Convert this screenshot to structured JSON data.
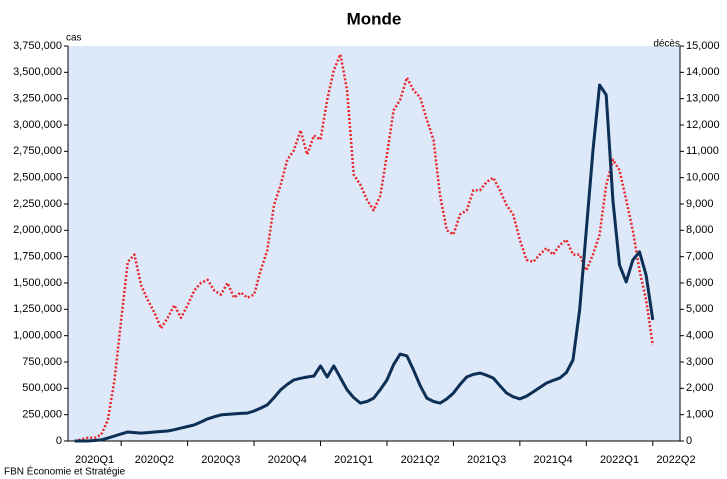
{
  "chart_data": {
    "type": "line",
    "title": "Monde",
    "ylabel": "cas",
    "y2label": "décès",
    "source": "FBN Économie et Stratégie",
    "x": [
      0.3,
      0.4,
      0.5,
      0.6,
      0.7,
      0.8,
      0.9,
      1.0,
      1.1,
      1.2,
      1.3,
      1.4,
      1.5,
      1.6,
      1.7,
      1.8,
      1.9,
      2.0,
      2.1,
      2.2,
      2.3,
      2.4,
      2.5,
      2.6,
      2.7,
      2.8,
      2.9,
      3.0,
      3.1,
      3.2,
      3.3,
      3.4,
      3.5,
      3.6,
      3.7,
      3.8,
      3.9,
      4.0,
      4.1,
      4.2,
      4.3,
      4.4,
      4.5,
      4.6,
      4.7,
      4.8,
      4.9,
      5.0,
      5.1,
      5.2,
      5.3,
      5.4,
      5.5,
      5.6,
      5.7,
      5.8,
      5.9,
      6.0,
      6.1,
      6.2,
      6.3,
      6.4,
      6.5,
      6.6,
      6.7,
      6.8,
      6.9,
      7.0,
      7.1,
      7.2,
      7.3,
      7.4,
      7.5,
      7.6,
      7.7,
      7.8,
      7.9,
      8.0,
      8.1,
      8.2,
      8.3,
      8.4,
      8.5,
      8.6,
      8.7,
      8.8,
      8.9,
      9.0
    ],
    "xlim": [
      0.2,
      9.41
    ],
    "xticks": [
      {
        "value": 0.6,
        "label": "2020Q1"
      },
      {
        "value": 1.5,
        "label": "2020Q2"
      },
      {
        "value": 2.5,
        "label": "2020Q3"
      },
      {
        "value": 3.5,
        "label": "2020Q4"
      },
      {
        "value": 4.5,
        "label": "2021Q1"
      },
      {
        "value": 5.5,
        "label": "2021Q2"
      },
      {
        "value": 6.5,
        "label": "2021Q3"
      },
      {
        "value": 7.5,
        "label": "2021Q4"
      },
      {
        "value": 8.5,
        "label": "2022Q1"
      },
      {
        "value": 9.35,
        "label": "2022Q2"
      }
    ],
    "ylim": [
      0,
      3750000
    ],
    "yticks": [
      0,
      {
        "value": 250000,
        "label": "250,000"
      },
      {
        "value": 500000,
        "label": "500,000"
      },
      {
        "value": 750000,
        "label": "750,000"
      },
      {
        "value": 1000000,
        "label": "1,000,000"
      },
      {
        "value": 1250000,
        "label": "1,250,000"
      },
      {
        "value": 1500000,
        "label": "1,500,000"
      },
      {
        "value": 1750000,
        "label": "1,750,000"
      },
      {
        "value": 2000000,
        "label": "2,000,000"
      },
      {
        "value": 2250000,
        "label": "2,250,000"
      },
      {
        "value": 2500000,
        "label": "2,500,000"
      },
      {
        "value": 2750000,
        "label": "2,750,000"
      },
      {
        "value": 3000000,
        "label": "3,000,000"
      },
      {
        "value": 3250000,
        "label": "3,250,000"
      },
      {
        "value": 3500000,
        "label": "3,500,000"
      },
      {
        "value": 3750000,
        "label": "3,750,000"
      }
    ],
    "y2lim": [
      0,
      15000
    ],
    "y2ticks": [
      0,
      {
        "value": 1000,
        "label": "1,000"
      },
      {
        "value": 2000,
        "label": "2,000"
      },
      {
        "value": 3000,
        "label": "3,000"
      },
      {
        "value": 4000,
        "label": "4,000"
      },
      {
        "value": 5000,
        "label": "5,000"
      },
      {
        "value": 6000,
        "label": "6,000"
      },
      {
        "value": 7000,
        "label": "7,000"
      },
      {
        "value": 8000,
        "label": "8,000"
      },
      {
        "value": 9000,
        "label": "9,000"
      },
      {
        "value": 10000,
        "label": "10,000"
      },
      {
        "value": 11000,
        "label": "11,000"
      },
      {
        "value": 12000,
        "label": "12,000"
      },
      {
        "value": 13000,
        "label": "13,000"
      },
      {
        "value": 14000,
        "label": "14,000"
      },
      {
        "value": 15000,
        "label": "15,000"
      }
    ],
    "series": [
      {
        "name": "cas",
        "color": "#e8262a",
        "dash": true,
        "values": [
          0,
          15000,
          30000,
          30000,
          60000,
          200000,
          580000,
          1150000,
          1700000,
          1770000,
          1480000,
          1340000,
          1220000,
          1070000,
          1170000,
          1290000,
          1170000,
          1290000,
          1430000,
          1500000,
          1530000,
          1430000,
          1390000,
          1500000,
          1360000,
          1410000,
          1360000,
          1390000,
          1620000,
          1810000,
          2240000,
          2430000,
          2670000,
          2760000,
          2950000,
          2720000,
          2900000,
          2860000,
          3240000,
          3520000,
          3670000,
          3330000,
          2530000,
          2430000,
          2290000,
          2190000,
          2330000,
          2720000,
          3140000,
          3240000,
          3450000,
          3330000,
          3260000,
          3050000,
          2860000,
          2330000,
          2000000,
          1960000,
          2150000,
          2190000,
          2380000,
          2380000,
          2460000,
          2500000,
          2380000,
          2240000,
          2150000,
          1910000,
          1720000,
          1700000,
          1770000,
          1830000,
          1770000,
          1860000,
          1910000,
          1770000,
          1770000,
          1620000,
          1770000,
          1960000,
          2430000,
          2670000,
          2570000,
          2290000,
          2000000,
          1620000,
          1340000,
          910000
        ]
      },
      {
        "name": "décès",
        "color": "#0d2f55",
        "axis": "y2",
        "values": [
          0,
          0,
          0,
          20,
          40,
          110,
          190,
          270,
          340,
          320,
          300,
          320,
          340,
          360,
          380,
          430,
          490,
          550,
          610,
          720,
          840,
          920,
          990,
          1010,
          1030,
          1050,
          1060,
          1140,
          1250,
          1370,
          1650,
          1940,
          2150,
          2320,
          2380,
          2430,
          2470,
          2850,
          2430,
          2850,
          2400,
          1940,
          1650,
          1440,
          1500,
          1630,
          1950,
          2320,
          2900,
          3300,
          3230,
          2700,
          2100,
          1630,
          1500,
          1440,
          1600,
          1820,
          2150,
          2430,
          2530,
          2580,
          2500,
          2390,
          2100,
          1820,
          1680,
          1600,
          1700,
          1860,
          2030,
          2200,
          2300,
          2390,
          2600,
          3080,
          5000,
          8010,
          11050,
          13520,
          13140,
          9150,
          6680,
          6040,
          6870,
          7180,
          6300,
          4600
        ]
      }
    ]
  }
}
